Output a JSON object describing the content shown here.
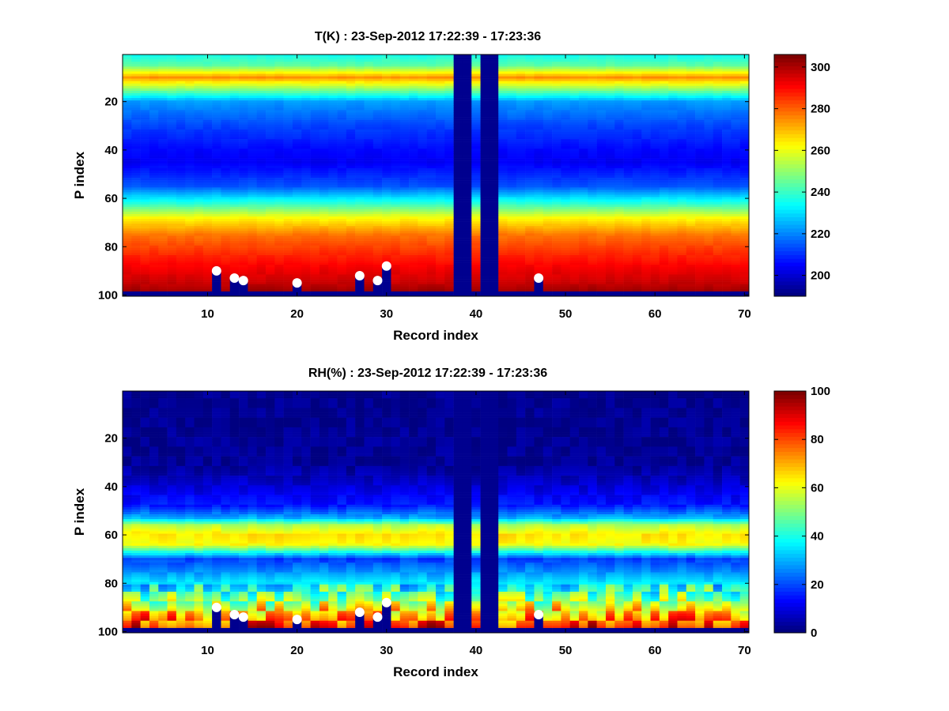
{
  "colormap": "jet",
  "marker_color": "#ffffff",
  "missing_color": "#00008f",
  "chart_data": [
    {
      "type": "heatmap",
      "title": "T(K) : 23-Sep-2012 17:22:39 - 17:23:36",
      "xlabel": "Record index",
      "ylabel": "P index",
      "xlim": [
        0.5,
        70.5
      ],
      "ylim": [
        0.5,
        100.5
      ],
      "y_reversed": true,
      "xticks": [
        10,
        20,
        30,
        40,
        50,
        60,
        70
      ],
      "yticks": [
        20,
        40,
        60,
        80,
        100
      ],
      "clim": [
        190,
        306
      ],
      "colorbar_ticks": [
        200,
        220,
        240,
        260,
        280,
        300
      ],
      "profile_pressure_index": [
        1,
        5,
        10,
        20,
        30,
        40,
        45,
        55,
        62,
        68,
        75,
        82,
        88,
        95,
        98
      ],
      "profile_values": [
        236,
        244,
        275,
        222,
        212,
        205,
        203,
        214,
        238,
        262,
        278,
        286,
        292,
        298,
        302
      ],
      "missing_records": [
        38,
        39,
        41,
        42
      ],
      "surface_markers": [
        {
          "record": 11,
          "p_index": 90
        },
        {
          "record": 13,
          "p_index": 93
        },
        {
          "record": 14,
          "p_index": 94
        },
        {
          "record": 20,
          "p_index": 95
        },
        {
          "record": 27,
          "p_index": 92
        },
        {
          "record": 29,
          "p_index": 94
        },
        {
          "record": 30,
          "p_index": 88
        },
        {
          "record": 47,
          "p_index": 93
        }
      ]
    },
    {
      "type": "heatmap",
      "title": "RH(%) : 23-Sep-2012 17:22:39 - 17:23:36",
      "xlabel": "Record index",
      "ylabel": "P index",
      "xlim": [
        0.5,
        70.5
      ],
      "ylim": [
        0.5,
        100.5
      ],
      "y_reversed": true,
      "xticks": [
        10,
        20,
        30,
        40,
        50,
        60,
        70
      ],
      "yticks": [
        20,
        40,
        60,
        80,
        100
      ],
      "clim": [
        0,
        100
      ],
      "colorbar_ticks": [
        0,
        20,
        40,
        60,
        80,
        100
      ],
      "profile_pressure_index": [
        1,
        30,
        36,
        42,
        48,
        53,
        56,
        60,
        64,
        67,
        70,
        76,
        83,
        88,
        93,
        98
      ],
      "profile_values": [
        1,
        2,
        5,
        10,
        15,
        30,
        55,
        65,
        62,
        40,
        18,
        28,
        42,
        55,
        72,
        85
      ],
      "missing_records": [
        38,
        39,
        41,
        42
      ],
      "surface_markers": [
        {
          "record": 11,
          "p_index": 90
        },
        {
          "record": 13,
          "p_index": 93
        },
        {
          "record": 14,
          "p_index": 94
        },
        {
          "record": 20,
          "p_index": 95
        },
        {
          "record": 27,
          "p_index": 92
        },
        {
          "record": 29,
          "p_index": 94
        },
        {
          "record": 30,
          "p_index": 88
        },
        {
          "record": 47,
          "p_index": 93
        }
      ]
    }
  ]
}
